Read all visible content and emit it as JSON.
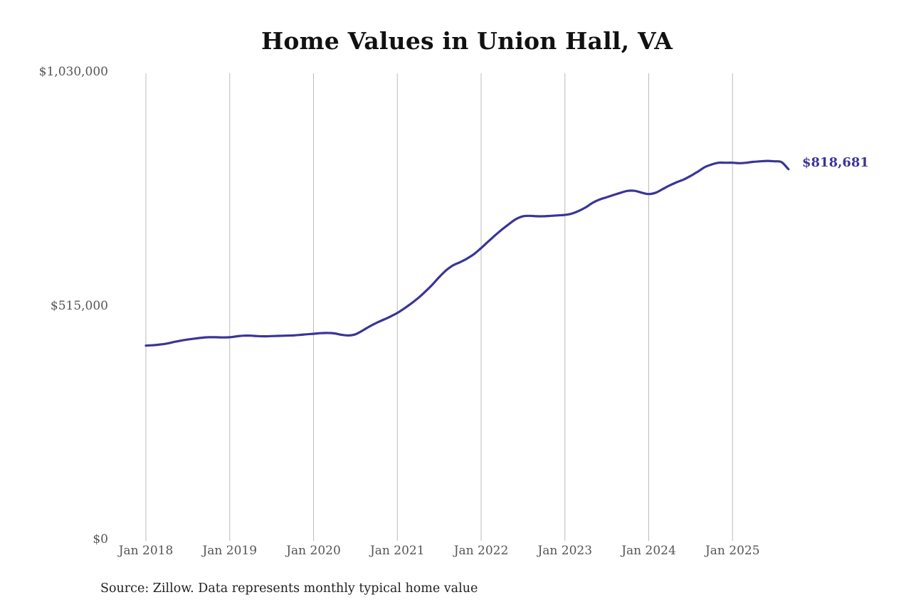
{
  "title": "Home Values in Union Hall, VA",
  "source": "Source: Zillow. Data represents monthly typical home value",
  "end_label": "$818,681",
  "colors": {
    "line": "#3a3596",
    "grid": "#bbbbbb",
    "title": "#111111",
    "tick": "#555555"
  },
  "y_ticks": [
    "$1,030,000",
    "$515,000",
    "$0"
  ],
  "x_ticks": [
    "Jan 2018",
    "Jan 2019",
    "Jan 2020",
    "Jan 2021",
    "Jan 2022",
    "Jan 2023",
    "Jan 2024",
    "Jan 2025"
  ],
  "chart_data": {
    "type": "line",
    "title": "Home Values in Union Hall, VA",
    "xlabel": "",
    "ylabel": "",
    "ylim": [
      0,
      1030000
    ],
    "y_ticks": [
      0,
      515000,
      1030000
    ],
    "x_tick_labels": [
      "Jan 2018",
      "Jan 2019",
      "Jan 2020",
      "Jan 2021",
      "Jan 2022",
      "Jan 2023",
      "Jan 2024",
      "Jan 2025"
    ],
    "grid": {
      "vertical": true,
      "horizontal": false
    },
    "legend": null,
    "annotation": {
      "text": "$818,681",
      "position": "end of series"
    },
    "series": [
      {
        "name": "Typical home value",
        "color": "#3a3596",
        "x": [
          "2018-01",
          "2018-02",
          "2018-03",
          "2018-04",
          "2018-05",
          "2018-06",
          "2018-07",
          "2018-08",
          "2018-09",
          "2018-10",
          "2018-11",
          "2018-12",
          "2019-01",
          "2019-02",
          "2019-03",
          "2019-04",
          "2019-05",
          "2019-06",
          "2019-07",
          "2019-08",
          "2019-09",
          "2019-10",
          "2019-11",
          "2019-12",
          "2020-01",
          "2020-02",
          "2020-03",
          "2020-04",
          "2020-05",
          "2020-06",
          "2020-07",
          "2020-08",
          "2020-09",
          "2020-10",
          "2020-11",
          "2020-12",
          "2021-01",
          "2021-02",
          "2021-03",
          "2021-04",
          "2021-05",
          "2021-06",
          "2021-07",
          "2021-08",
          "2021-09",
          "2021-10",
          "2021-11",
          "2021-12",
          "2022-01",
          "2022-02",
          "2022-03",
          "2022-04",
          "2022-05",
          "2022-06",
          "2022-07",
          "2022-08",
          "2022-09",
          "2022-10",
          "2022-11",
          "2022-12",
          "2023-01",
          "2023-02",
          "2023-03",
          "2023-04",
          "2023-05",
          "2023-06",
          "2023-07",
          "2023-08",
          "2023-09",
          "2023-10",
          "2023-11",
          "2023-12",
          "2024-01",
          "2024-02",
          "2024-03",
          "2024-04",
          "2024-05",
          "2024-06",
          "2024-07",
          "2024-08",
          "2024-09",
          "2024-10",
          "2024-11",
          "2024-12",
          "2025-01",
          "2025-02",
          "2025-03",
          "2025-04",
          "2025-05",
          "2025-06",
          "2025-07",
          "2025-08",
          "2025-09"
        ],
        "values": [
          430000,
          431000,
          432500,
          434500,
          438000,
          441000,
          443500,
          445500,
          447500,
          448500,
          448500,
          448000,
          448500,
          450500,
          452000,
          452000,
          451000,
          450500,
          451000,
          451500,
          452000,
          452500,
          453500,
          455000,
          456000,
          457500,
          458000,
          457000,
          454000,
          452500,
          455000,
          463000,
          472000,
          480000,
          487000,
          494000,
          502000,
          512000,
          523000,
          535000,
          549000,
          564000,
          581000,
          596000,
          607000,
          614000,
          622000,
          632000,
          645000,
          659000,
          673000,
          686000,
          698000,
          709000,
          715000,
          716000,
          715000,
          715000,
          716000,
          717000,
          718000,
          721000,
          727000,
          735000,
          745000,
          752000,
          757000,
          762000,
          767000,
          771000,
          771000,
          767000,
          764000,
          767000,
          775000,
          783000,
          790000,
          796000,
          804000,
          813000,
          823000,
          829000,
          833000,
          833000,
          833000,
          832000,
          833000,
          835000,
          836000,
          837000,
          836000,
          834500,
          818681
        ]
      }
    ]
  }
}
